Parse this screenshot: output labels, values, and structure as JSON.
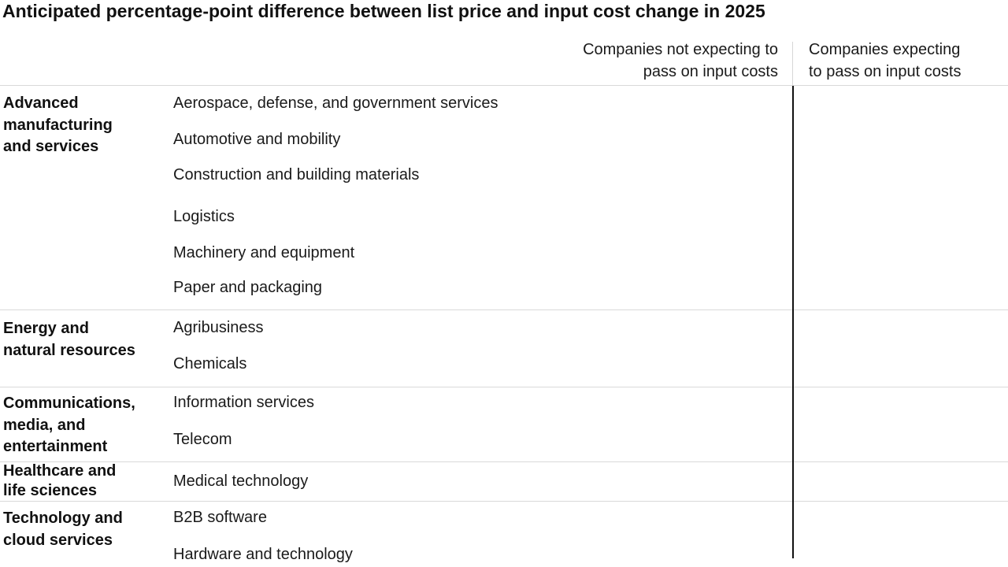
{
  "chart_data": {
    "type": "bar",
    "title": "Anticipated percentage-point difference between list price and input cost change in 2025",
    "columns": [
      {
        "lines": [
          "Companies not expecting to",
          "pass on input costs"
        ]
      },
      {
        "lines": [
          "Companies expecting",
          "to pass on input costs"
        ]
      }
    ],
    "groups": [
      {
        "lines": [
          "Advanced",
          "manufacturing",
          "and services"
        ],
        "categories": [
          "Aerospace, defense, and government services",
          "Automotive and mobility",
          "Construction and building materials",
          "Logistics",
          "Machinery and equipment",
          "Paper and packaging"
        ]
      },
      {
        "lines": [
          "Energy and",
          "natural resources"
        ],
        "categories": [
          "Agribusiness",
          "Chemicals"
        ]
      },
      {
        "lines": [
          "Communications,",
          "media, and",
          "entertainment"
        ],
        "categories": [
          "Information services",
          "Telecom"
        ]
      },
      {
        "lines": [
          "Healthcare and",
          "life sciences"
        ],
        "categories": [
          "Medical technology"
        ]
      },
      {
        "lines": [
          "Technology and",
          "cloud services"
        ],
        "categories": [
          "B2B software",
          "Hardware and technology"
        ]
      }
    ]
  }
}
